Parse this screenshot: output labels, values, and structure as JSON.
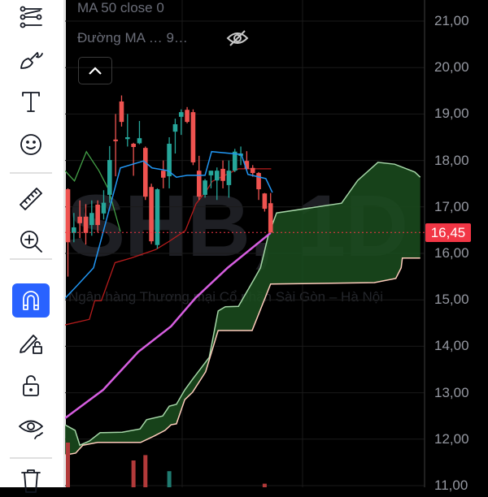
{
  "toolbar": {
    "tools": [
      {
        "icon": "trend-line-tools-icon"
      },
      {
        "icon": "brush-icon"
      },
      {
        "icon": "text-icon"
      },
      {
        "icon": "emoji-icon"
      },
      {
        "icon": "ruler-icon"
      },
      {
        "icon": "zoom-in-icon"
      },
      {
        "icon": "magnet-icon",
        "active": true
      },
      {
        "icon": "pencil-lock-icon"
      },
      {
        "icon": "unlock-icon"
      },
      {
        "icon": "eye-brush-icon"
      },
      {
        "icon": "trash-icon"
      }
    ],
    "active_color": "#2962ff"
  },
  "legend": {
    "line1": "MA 50 close 0",
    "line2": "Đường MA …  9…",
    "hide_icon": "eye-off-icon",
    "collapse_icon": "chevron-up-icon"
  },
  "watermark": {
    "symbol": "SHB, 1D",
    "name": "Ngân hàng Thương mại Cổ phần Sài Gòn – Hà Nội"
  },
  "price_axis": {
    "ticks": [
      "21,00",
      "20,00",
      "19,00",
      "18,00",
      "17,00",
      "16,00",
      "15,00",
      "14,00",
      "13,00",
      "12,00",
      "11,00"
    ],
    "last_price": "16,45"
  },
  "colors": {
    "up": "#26a69a",
    "down": "#ef5350",
    "tenkan": "#2196f3",
    "kijun": "#b71c1c",
    "chikou": "#43a047",
    "ma": "#d65ee0",
    "span_a": "#a5d6a7",
    "span_b": "#ffccbc",
    "cloud": "#1b4d1e",
    "last_price": "#f23645"
  },
  "chart_data": {
    "type": "candlestick",
    "ylim": [
      10.9,
      21.45
    ],
    "candles": [
      [
        17.38,
        17.4,
        15.5,
        16.24
      ],
      [
        16.44,
        16.87,
        16.24,
        16.56
      ],
      [
        16.79,
        17.14,
        16.33,
        16.65
      ],
      [
        16.79,
        17.06,
        16.19,
        16.44
      ],
      [
        16.61,
        17.14,
        16.38,
        16.87
      ],
      [
        17.05,
        17.14,
        16.45,
        16.61
      ],
      [
        16.86,
        17.36,
        16.73,
        17.09
      ],
      [
        17.26,
        18.31,
        17.09,
        18.01
      ],
      [
        18.45,
        19.0,
        17.66,
        18.42
      ],
      [
        19.27,
        19.4,
        18.73,
        18.83
      ],
      [
        18.46,
        19.0,
        18.3,
        18.5
      ],
      [
        18.36,
        18.38,
        17.67,
        18.29
      ],
      [
        18.37,
        18.85,
        18.35,
        18.48
      ],
      [
        18.27,
        18.3,
        17.15,
        17.22
      ],
      [
        17.43,
        17.5,
        16.2,
        16.26
      ],
      [
        16.18,
        17.4,
        16.1,
        17.38
      ],
      [
        17.78,
        18.0,
        17.4,
        17.63
      ],
      [
        17.66,
        18.5,
        17.4,
        18.36
      ],
      [
        18.62,
        18.9,
        18.15,
        18.78
      ],
      [
        18.94,
        19.1,
        18.55,
        19.04
      ],
      [
        19.09,
        19.15,
        18.8,
        18.83
      ],
      [
        19.04,
        19.1,
        17.9,
        17.96
      ],
      [
        17.78,
        18.1,
        17.15,
        17.22
      ],
      [
        17.26,
        17.6,
        17.2,
        17.57
      ],
      [
        17.68,
        17.78,
        17.4,
        17.78
      ],
      [
        17.57,
        17.85,
        17.15,
        17.78
      ],
      [
        17.82,
        18.0,
        17.4,
        17.56
      ],
      [
        17.47,
        18.0,
        17.2,
        17.78
      ],
      [
        17.78,
        18.25,
        17.75,
        18.19
      ],
      [
        18.1,
        18.3,
        17.9,
        18.15
      ],
      [
        17.99,
        18.2,
        17.78,
        17.82
      ],
      [
        17.84,
        17.9,
        17.65,
        17.73
      ],
      [
        17.73,
        17.75,
        17.15,
        17.38
      ],
      [
        17.29,
        17.3,
        16.9,
        16.96
      ],
      [
        17.08,
        17.3,
        16.44,
        16.45
      ]
    ],
    "tenkan": [
      [
        -0.5,
        15.03
      ],
      [
        1.5,
        15.3
      ],
      [
        4.3,
        15.69
      ],
      [
        8.8,
        17.84
      ],
      [
        12.7,
        17.99
      ],
      [
        14.1,
        17.84
      ],
      [
        16.8,
        17.78
      ],
      [
        18.2,
        17.64
      ],
      [
        20,
        17.68
      ],
      [
        23,
        17.68
      ],
      [
        24.1,
        18.19
      ],
      [
        29.1,
        18.13
      ],
      [
        30.2,
        17.7
      ],
      [
        33.2,
        17.61
      ],
      [
        34.3,
        17.31
      ]
    ],
    "kijun": [
      [
        -0.5,
        14.46
      ],
      [
        3.6,
        14.58
      ],
      [
        4.5,
        14.98
      ],
      [
        5.6,
        14.98
      ],
      [
        7.9,
        15.8
      ],
      [
        10.6,
        15.9
      ],
      [
        14.7,
        16.08
      ],
      [
        17,
        16.26
      ],
      [
        19.7,
        16.49
      ],
      [
        21.5,
        17.07
      ],
      [
        23.3,
        17.36
      ],
      [
        24.2,
        17.55
      ],
      [
        28.6,
        17.82
      ],
      [
        34.1,
        17.82
      ]
    ],
    "chikou": [
      [
        -0.5,
        17.78
      ],
      [
        1.1,
        17.56
      ],
      [
        3.1,
        18.19
      ],
      [
        5.2,
        17.78
      ],
      [
        6.8,
        17.38
      ],
      [
        8.8,
        16.47
      ]
    ],
    "ma": [
      [
        -0.5,
        12.45
      ],
      [
        5.9,
        13.06
      ],
      [
        11.8,
        13.88
      ],
      [
        17.3,
        14.43
      ],
      [
        21.4,
        15.04
      ],
      [
        26.8,
        15.69
      ],
      [
        34,
        16.44
      ]
    ],
    "span_a": [
      [
        -0.5,
        12.31
      ],
      [
        1.2,
        12.19
      ],
      [
        2,
        11.87
      ],
      [
        3.6,
        11.96
      ],
      [
        5.4,
        12.14
      ],
      [
        9.1,
        12.15
      ],
      [
        12.1,
        12.22
      ],
      [
        13.2,
        12.42
      ],
      [
        15.9,
        12.5
      ],
      [
        17,
        12.71
      ],
      [
        18.2,
        12.75
      ],
      [
        19.6,
        13.06
      ],
      [
        20.9,
        13.29
      ],
      [
        23.7,
        13.76
      ],
      [
        25.2,
        14.76
      ],
      [
        26.4,
        14.85
      ],
      [
        28.6,
        14.86
      ],
      [
        31.3,
        15.46
      ],
      [
        32.3,
        15.69
      ],
      [
        33.6,
        16.38
      ],
      [
        35,
        16.87
      ],
      [
        45.9,
        17.08
      ],
      [
        48.6,
        17.57
      ],
      [
        52,
        17.96
      ],
      [
        54.8,
        17.92
      ],
      [
        58.2,
        17.75
      ],
      [
        59.1,
        17.64
      ]
    ],
    "span_b": [
      [
        -0.5,
        11.66
      ],
      [
        1.3,
        11.7
      ],
      [
        2.5,
        11.87
      ],
      [
        5,
        11.93
      ],
      [
        12.2,
        11.93
      ],
      [
        14.5,
        12.07
      ],
      [
        16.3,
        12.19
      ],
      [
        17.3,
        12.31
      ],
      [
        18.2,
        12.33
      ],
      [
        19.6,
        12.85
      ],
      [
        20.9,
        13.01
      ],
      [
        23.1,
        13.45
      ],
      [
        25.2,
        14.34
      ],
      [
        30.9,
        14.34
      ],
      [
        34,
        15.34
      ],
      [
        51.4,
        15.37
      ],
      [
        55,
        15.46
      ],
      [
        55.9,
        15.69
      ],
      [
        56.1,
        15.9
      ],
      [
        59.1,
        15.9
      ]
    ],
    "volume": [
      [
        0,
        1.0,
        "down"
      ],
      [
        11,
        0.6,
        "down"
      ],
      [
        13,
        0.72,
        "down"
      ],
      [
        17,
        0.36,
        "up"
      ],
      [
        33,
        0.08,
        "down"
      ]
    ],
    "last_price": 16.45,
    "grid": true
  }
}
